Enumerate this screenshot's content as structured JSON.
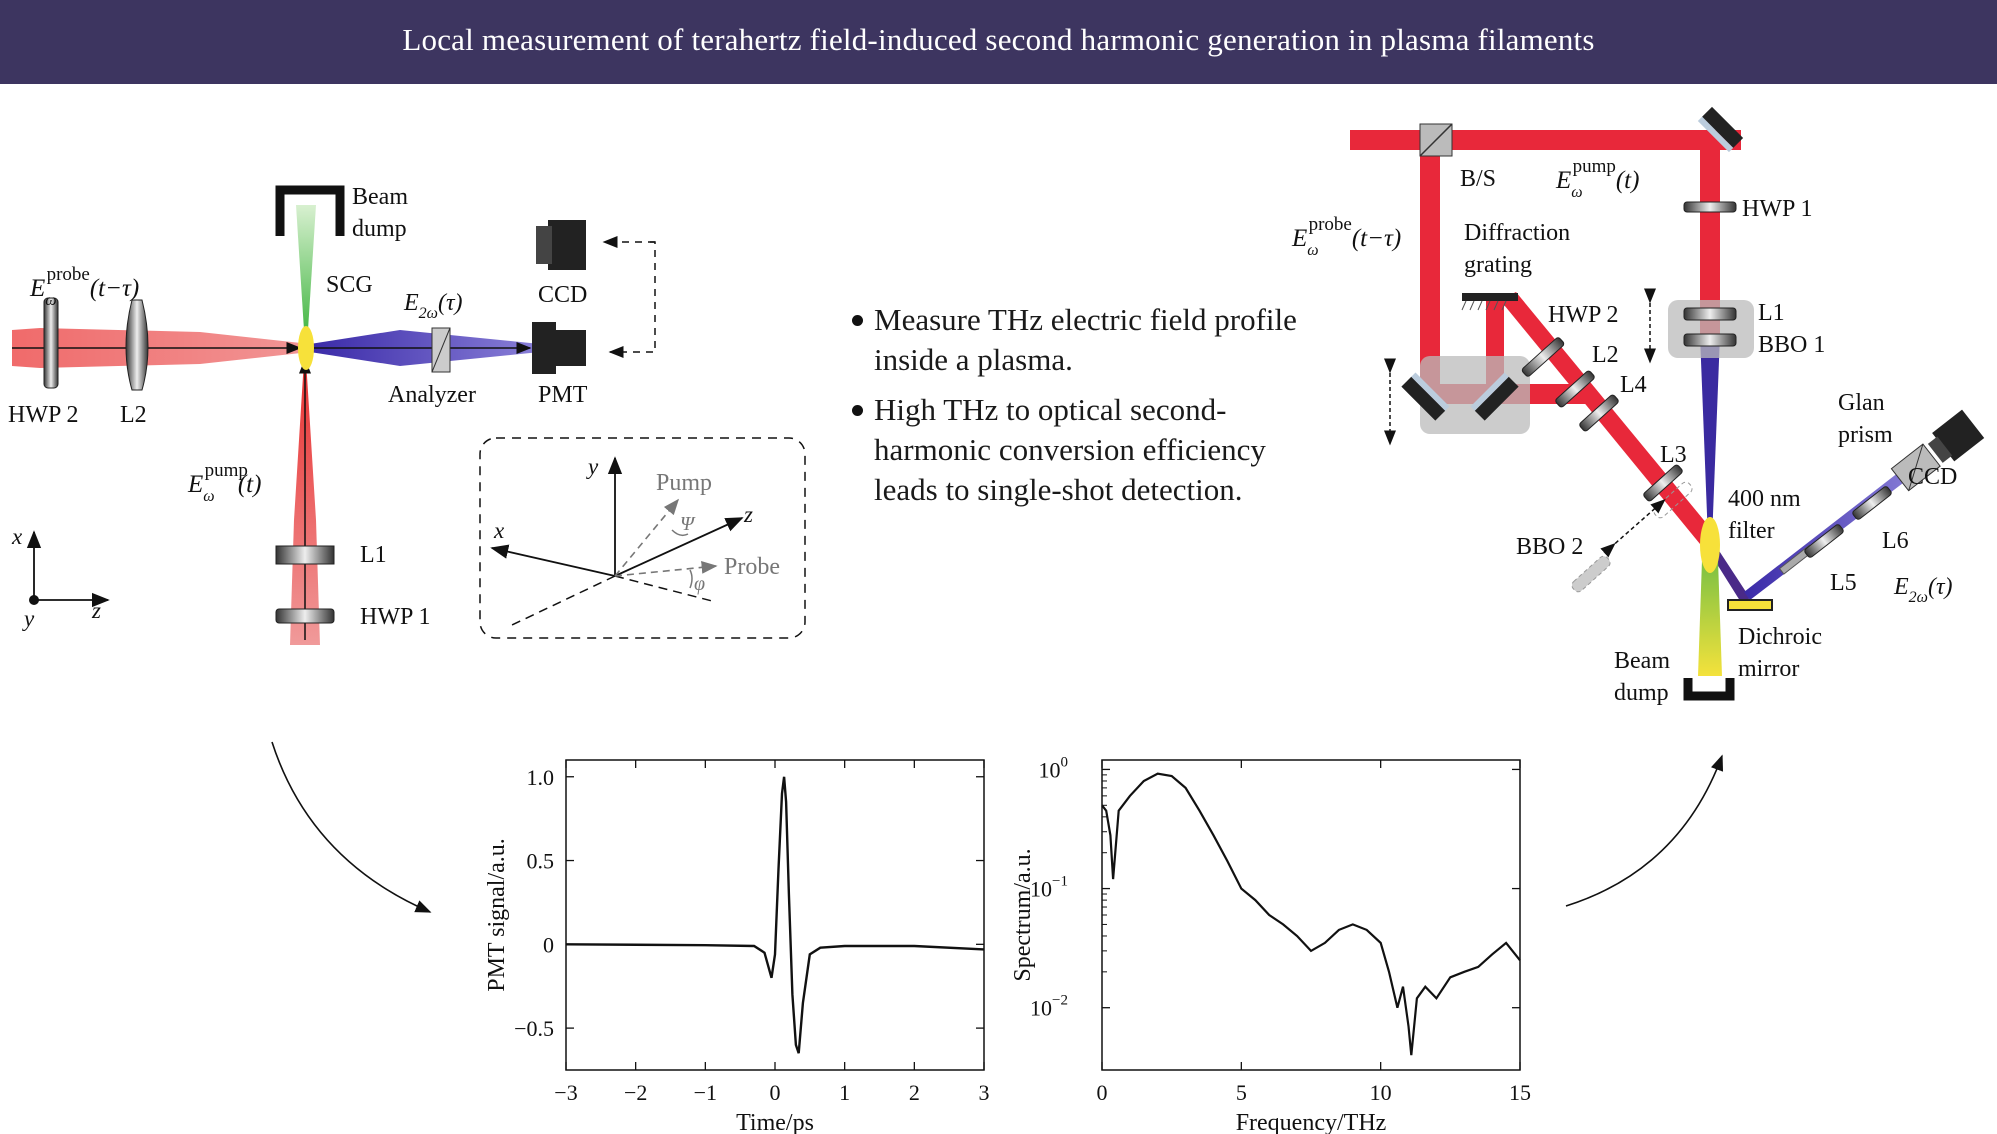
{
  "header": {
    "title": "Local measurement of terahertz field-induced second harmonic generation in plasma filaments"
  },
  "bullets": [
    "Measure THz electric field profile inside a plasma.",
    "High THz to optical second-harmonic conversion efficiency leads to single-shot detection."
  ],
  "left_setup": {
    "beam_dump": [
      "Beam",
      "dump"
    ],
    "scg": "SCG",
    "probe_field": {
      "main": "E",
      "sub": "ω",
      "sup": "probe",
      "arg": "(t−τ)"
    },
    "pump_field": {
      "main": "E",
      "sub": "ω",
      "sup": "pump",
      "arg": "(t)"
    },
    "sh_field": {
      "main": "E",
      "sub": "2ω",
      "arg": "(τ)"
    },
    "ccd": "CCD",
    "pmt": "PMT",
    "analyzer": "Analyzer",
    "hwp2": "HWP 2",
    "l2": "L2",
    "l1": "L1",
    "hwp1": "HWP 1",
    "axes": {
      "x": "x",
      "y": "y",
      "z": "z"
    }
  },
  "inset": {
    "y": "y",
    "x": "x",
    "z": "z",
    "pump": "Pump",
    "probe": "Probe",
    "psi": "Ψ",
    "phi": "φ"
  },
  "right_setup": {
    "bs": "B/S",
    "pump_field": {
      "main": "E",
      "sub": "ω",
      "sup": "pump",
      "arg": "(t)"
    },
    "probe_field": {
      "main": "E",
      "sub": "ω",
      "sup": "probe",
      "arg": "(t−τ)"
    },
    "hwp1": "HWP 1",
    "diffraction_grating": [
      "Diffraction",
      "grating"
    ],
    "hwp2": "HWP 2",
    "l1": "L1",
    "bbo1": "BBO 1",
    "l2": "L2",
    "l4": "L4",
    "l3": "L3",
    "glan_prism": [
      "Glan",
      "prism"
    ],
    "ccd": "CCD",
    "filter": [
      "400 nm",
      "filter"
    ],
    "l6": "L6",
    "bbo2": "BBO 2",
    "l5": "L5",
    "sh_field": {
      "main": "E",
      "sub": "2ω",
      "arg": "(τ)"
    },
    "dichroic_mirror": [
      "Dichroic",
      "mirror"
    ],
    "beam_dump": [
      "Beam",
      "dump"
    ]
  },
  "chart_data": [
    {
      "type": "line",
      "title": "",
      "xlabel": "Time/ps",
      "ylabel": "PMT signal/a.u.",
      "xlim": [
        -3,
        3
      ],
      "ylim": [
        -0.75,
        1.1
      ],
      "x_ticks": [
        "−3",
        "−2",
        "−1",
        "0",
        "1",
        "2",
        "3"
      ],
      "y_ticks": [
        "1.0",
        "0.5",
        "0",
        "−0.5"
      ],
      "x": [
        -3.0,
        -1.0,
        -0.3,
        -0.15,
        -0.05,
        0.0,
        0.05,
        0.1,
        0.13,
        0.16,
        0.2,
        0.25,
        0.3,
        0.34,
        0.4,
        0.5,
        0.65,
        1.0,
        2.0,
        3.0
      ],
      "y": [
        0.0,
        -0.005,
        -0.01,
        -0.05,
        -0.2,
        -0.06,
        0.45,
        0.9,
        1.0,
        0.85,
        0.3,
        -0.3,
        -0.6,
        -0.65,
        -0.35,
        -0.06,
        -0.02,
        -0.01,
        -0.01,
        -0.03
      ]
    },
    {
      "type": "line",
      "title": "",
      "xlabel": "Frequency/THz",
      "ylabel": "Spectrum/a.u.",
      "xlim": [
        0,
        15
      ],
      "ylim": [
        0.003,
        1.2
      ],
      "log_y": true,
      "x_ticks": [
        "0",
        "5",
        "10",
        "15"
      ],
      "y_ticks": [
        {
          "base": "10",
          "exp": "0"
        },
        {
          "base": "10",
          "exp": "−1"
        },
        {
          "base": "10",
          "exp": "−2"
        }
      ],
      "x": [
        0.0,
        0.15,
        0.3,
        0.4,
        0.6,
        1.0,
        1.5,
        2.0,
        2.5,
        3.0,
        3.5,
        4.0,
        4.5,
        5.0,
        5.5,
        6.0,
        6.5,
        7.0,
        7.5,
        8.0,
        8.5,
        9.0,
        9.5,
        10.0,
        10.3,
        10.6,
        10.8,
        11.0,
        11.1,
        11.3,
        11.6,
        12.0,
        12.5,
        13.0,
        13.5,
        14.0,
        14.5,
        15.0
      ],
      "y": [
        0.5,
        0.45,
        0.28,
        0.12,
        0.45,
        0.6,
        0.8,
        0.92,
        0.88,
        0.7,
        0.45,
        0.28,
        0.17,
        0.1,
        0.08,
        0.06,
        0.05,
        0.04,
        0.03,
        0.035,
        0.045,
        0.05,
        0.045,
        0.035,
        0.02,
        0.01,
        0.015,
        0.007,
        0.004,
        0.012,
        0.015,
        0.012,
        0.018,
        0.02,
        0.022,
        0.028,
        0.035,
        0.025
      ]
    }
  ]
}
